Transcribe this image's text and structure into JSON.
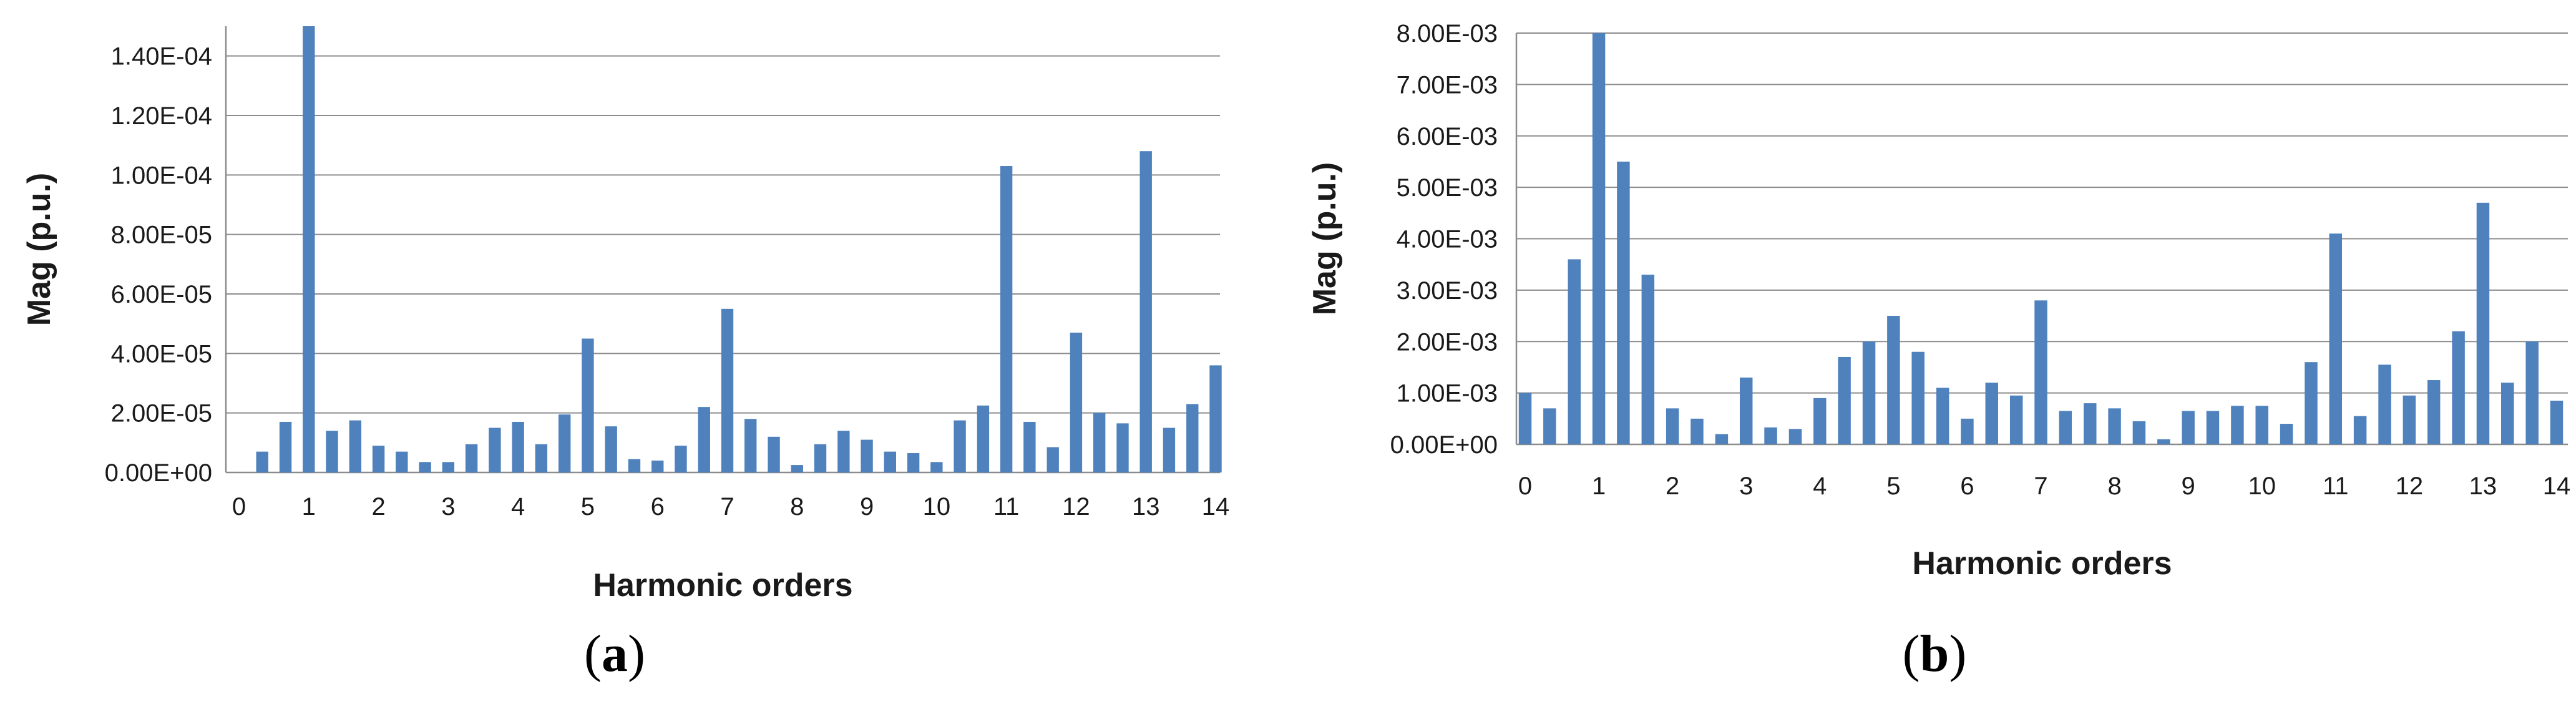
{
  "colors": {
    "bar": "#4f81bd",
    "grid": "#8c8c8c",
    "text": "#1a1a1a"
  },
  "chart_data": [
    {
      "type": "bar",
      "panel_label": "a",
      "xlabel": "Harmonic orders",
      "ylabel": "Mag (p.u.)",
      "ylim": [
        0,
        0.00015
      ],
      "yticks": [
        "0.00E+00",
        "2.00E-05",
        "4.00E-05",
        "6.00E-05",
        "8.00E-05",
        "1.00E-04",
        "1.20E-04",
        "1.40E-04"
      ],
      "ytick_values": [
        0,
        2e-05,
        4e-05,
        6e-05,
        8e-05,
        0.0001,
        0.00012,
        0.00014
      ],
      "xticks": [
        "0",
        "1",
        "2",
        "3",
        "4",
        "5",
        "6",
        "7",
        "8",
        "9",
        "10",
        "11",
        "12",
        "13",
        "14"
      ],
      "xlim": [
        0,
        14
      ],
      "grid": true,
      "legend": "none",
      "x": [
        0.333,
        0.667,
        1,
        1.333,
        1.667,
        2,
        2.333,
        2.667,
        3,
        3.333,
        3.667,
        4,
        4.333,
        4.667,
        5,
        5.333,
        5.667,
        6,
        6.333,
        6.667,
        7,
        7.333,
        7.667,
        8,
        8.333,
        8.667,
        9,
        9.333,
        9.667,
        10,
        10.333,
        10.667,
        11,
        11.333,
        11.667,
        12,
        12.333,
        12.667,
        13,
        13.333,
        13.667,
        14
      ],
      "values": [
        7e-06,
        1.7e-05,
        0.00015,
        1.4e-05,
        1.75e-05,
        9e-06,
        7e-06,
        3.5e-06,
        3.5e-06,
        9.5e-06,
        1.5e-05,
        1.7e-05,
        9.5e-06,
        1.95e-05,
        4.5e-05,
        1.55e-05,
        4.5e-06,
        4e-06,
        9e-06,
        2.2e-05,
        5.5e-05,
        1.8e-05,
        1.2e-05,
        2.5e-06,
        9.5e-06,
        1.4e-05,
        1.1e-05,
        7e-06,
        6.5e-06,
        3.5e-06,
        1.75e-05,
        2.25e-05,
        0.000103,
        1.7e-05,
        8.5e-06,
        4.7e-05,
        2e-05,
        1.65e-05,
        0.000108,
        1.5e-05,
        2.3e-05,
        3.6e-05
      ]
    },
    {
      "type": "bar",
      "panel_label": "b",
      "xlabel": "Harmonic orders",
      "ylabel": "Mag (p.u.)",
      "ylim": [
        0,
        0.008
      ],
      "yticks": [
        "0.00E+00",
        "1.00E-03",
        "2.00E-03",
        "3.00E-03",
        "4.00E-03",
        "5.00E-03",
        "6.00E-03",
        "7.00E-03",
        "8.00E-03"
      ],
      "ytick_values": [
        0,
        0.001,
        0.002,
        0.003,
        0.004,
        0.005,
        0.006,
        0.007,
        0.008
      ],
      "xticks": [
        "0",
        "1",
        "2",
        "3",
        "4",
        "5",
        "6",
        "7",
        "8",
        "9",
        "10",
        "11",
        "12",
        "13",
        "14"
      ],
      "xlim": [
        0,
        14
      ],
      "grid": true,
      "legend": "none",
      "x": [
        0,
        0.333,
        0.667,
        1,
        1.333,
        1.667,
        2,
        2.333,
        2.667,
        3,
        3.333,
        3.667,
        4,
        4.333,
        4.667,
        5,
        5.333,
        5.667,
        6,
        6.333,
        6.667,
        7,
        7.333,
        7.667,
        8,
        8.333,
        8.667,
        9,
        9.333,
        9.667,
        10,
        10.333,
        10.667,
        11,
        11.333,
        11.667,
        12,
        12.333,
        12.667,
        13,
        13.333,
        13.667,
        14
      ],
      "values": [
        0.001,
        0.0007,
        0.0036,
        0.008,
        0.0055,
        0.0033,
        0.0007,
        0.0005,
        0.0002,
        0.0013,
        0.00033,
        0.0003,
        0.0009,
        0.0017,
        0.002,
        0.0025,
        0.0018,
        0.0011,
        0.0005,
        0.0012,
        0.00095,
        0.0028,
        0.00065,
        0.0008,
        0.0007,
        0.00045,
        0.0001,
        0.00065,
        0.00065,
        0.00075,
        0.00075,
        0.0004,
        0.0016,
        0.0041,
        0.00055,
        0.00155,
        0.00095,
        0.00125,
        0.0022,
        0.0047,
        0.0012,
        0.002,
        0.00085
      ]
    }
  ]
}
